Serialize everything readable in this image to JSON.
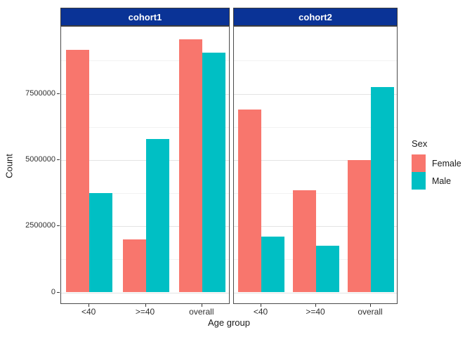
{
  "chart_data": {
    "type": "bar",
    "title": "",
    "xlabel": "Age group",
    "ylabel": "Count",
    "ylim": [
      0,
      10000000
    ],
    "grid": "major-and-minor",
    "categories": [
      "<40",
      ">=40",
      "overall"
    ],
    "y_ticks": {
      "values": [
        0,
        2500000,
        5000000,
        7500000
      ],
      "labels": [
        "0",
        "2500000",
        "5000000",
        "7500000"
      ]
    },
    "minor_tick_values": [
      1250000,
      3750000,
      6250000,
      8750000
    ],
    "legend": {
      "title": "Sex",
      "position": "right",
      "entries": [
        {
          "label": "Female",
          "color": "#F8766D"
        },
        {
          "label": "Male",
          "color": "#00BFC4"
        }
      ]
    },
    "facets": [
      {
        "label": "cohort1",
        "series": [
          {
            "name": "Female",
            "color": "#F8766D",
            "values": [
              9150000,
              2000000,
              9550000
            ]
          },
          {
            "name": "Male",
            "color": "#00BFC4",
            "values": [
              3750000,
              5780000,
              9050000
            ]
          }
        ]
      },
      {
        "label": "cohort2",
        "series": [
          {
            "name": "Female",
            "color": "#F8766D",
            "values": [
              6900000,
              3850000,
              5000000
            ]
          },
          {
            "name": "Male",
            "color": "#00BFC4",
            "values": [
              2100000,
              1750000,
              7750000
            ]
          }
        ]
      }
    ],
    "colors": {
      "facet_strip_bg": "#0a3396",
      "facet_strip_text": "#ffffff",
      "panel_border": "#4a4a4a",
      "gridline_major": "#e4e4e4",
      "gridline_minor": "#f2f2f2"
    }
  }
}
